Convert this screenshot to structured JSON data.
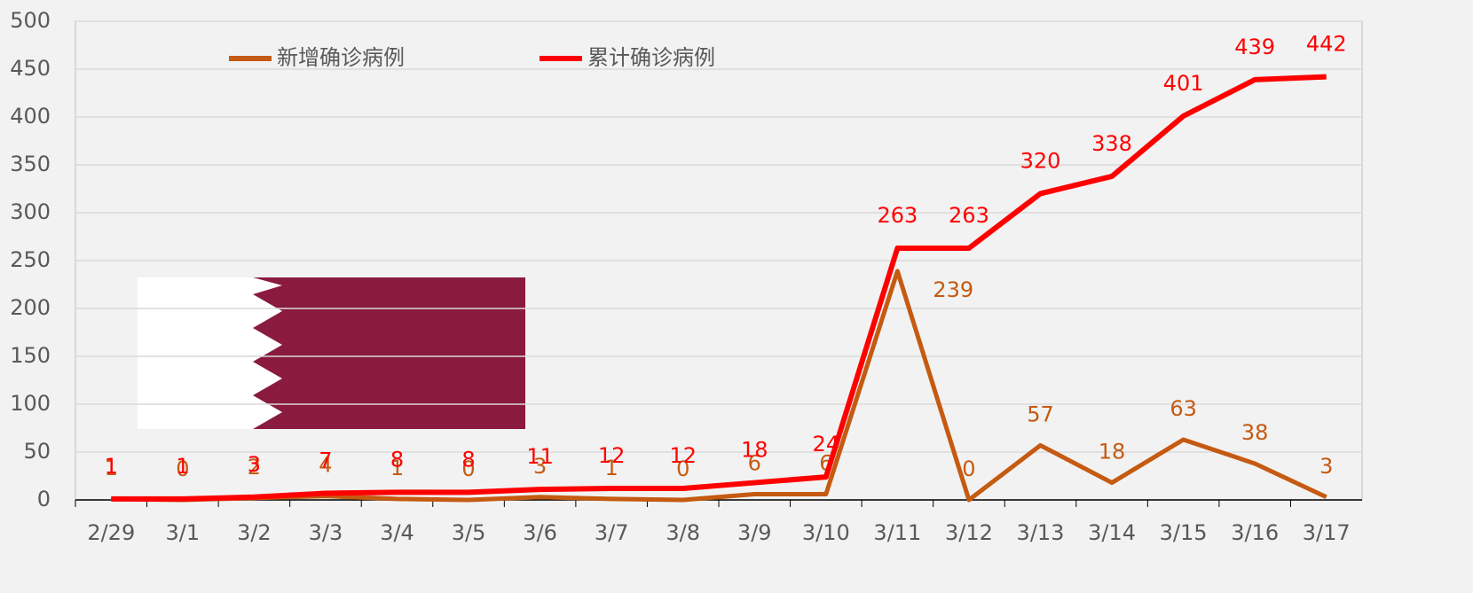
{
  "chart_data": {
    "type": "line",
    "categories": [
      "2/29",
      "3/1",
      "3/2",
      "3/3",
      "3/4",
      "3/5",
      "3/6",
      "3/7",
      "3/8",
      "3/9",
      "3/10",
      "3/11",
      "3/12",
      "3/13",
      "3/14",
      "3/15",
      "3/16",
      "3/17"
    ],
    "series": [
      {
        "name": "新增确诊病例",
        "color": "#c55a11",
        "values": [
          1,
          0,
          2,
          4,
          1,
          0,
          3,
          1,
          0,
          6,
          6,
          239,
          0,
          57,
          18,
          63,
          38,
          3
        ]
      },
      {
        "name": "累计确诊病例",
        "color": "#ff0000",
        "values": [
          1,
          1,
          3,
          7,
          8,
          8,
          11,
          12,
          12,
          18,
          24,
          263,
          263,
          320,
          338,
          401,
          439,
          442
        ]
      }
    ],
    "ylim": [
      0,
      500
    ],
    "yticks": [
      0,
      50,
      100,
      150,
      200,
      250,
      300,
      350,
      400,
      450,
      500
    ],
    "grid": true,
    "legend": "top"
  }
}
